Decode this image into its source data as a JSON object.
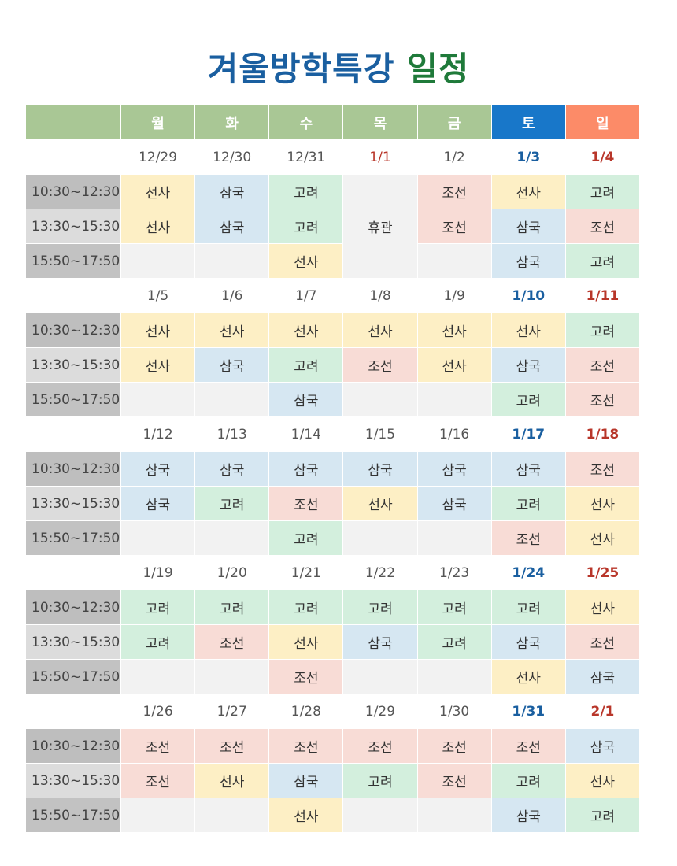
{
  "title_part1": "겨울방학특강",
  "title_part2": "일정",
  "header": {
    "corner": "",
    "days": [
      "월",
      "화",
      "수",
      "목",
      "금",
      "토",
      "일"
    ]
  },
  "colors": {
    "header_weekday": "#a9c795",
    "header_saturday": "#1877c9",
    "header_sunday": "#fc8b68",
    "seonsa": "#fdefc5",
    "samguk": "#d6e7f2",
    "goryeo": "#d3efdd",
    "joseon": "#f8dcd6",
    "empty": "#f2f2f2"
  },
  "times": [
    "10:30~12:30",
    "13:30~15:30",
    "15:50~17:50"
  ],
  "weeks": [
    {
      "dates": [
        "12/29",
        "12/30",
        "12/31",
        "1/1",
        "1/2",
        "1/3",
        "1/4"
      ],
      "holiday_index": 3,
      "rows": [
        [
          "선사",
          "삼국",
          "고려",
          "휴관",
          "조선",
          "선사",
          "고려"
        ],
        [
          "선사",
          "삼국",
          "고려",
          null,
          "조선",
          "삼국",
          "조선"
        ],
        [
          "",
          "",
          "선사",
          null,
          "",
          "삼국",
          "고려"
        ]
      ]
    },
    {
      "dates": [
        "1/5",
        "1/6",
        "1/7",
        "1/8",
        "1/9",
        "1/10",
        "1/11"
      ],
      "rows": [
        [
          "선사",
          "선사",
          "선사",
          "선사",
          "선사",
          "선사",
          "고려"
        ],
        [
          "선사",
          "삼국",
          "고려",
          "조선",
          "선사",
          "삼국",
          "조선"
        ],
        [
          "",
          "",
          "삼국",
          "",
          "",
          "고려",
          "조선"
        ]
      ]
    },
    {
      "dates": [
        "1/12",
        "1/13",
        "1/14",
        "1/15",
        "1/16",
        "1/17",
        "1/18"
      ],
      "rows": [
        [
          "삼국",
          "삼국",
          "삼국",
          "삼국",
          "삼국",
          "삼국",
          "조선"
        ],
        [
          "삼국",
          "고려",
          "조선",
          "선사",
          "삼국",
          "고려",
          "선사"
        ],
        [
          "",
          "",
          "고려",
          "",
          "",
          "조선",
          "선사"
        ]
      ]
    },
    {
      "dates": [
        "1/19",
        "1/20",
        "1/21",
        "1/22",
        "1/23",
        "1/24",
        "1/25"
      ],
      "rows": [
        [
          "고려",
          "고려",
          "고려",
          "고려",
          "고려",
          "고려",
          "선사"
        ],
        [
          "고려",
          "조선",
          "선사",
          "삼국",
          "고려",
          "삼국",
          "조선"
        ],
        [
          "",
          "",
          "조선",
          "",
          "",
          "선사",
          "삼국"
        ]
      ]
    },
    {
      "dates": [
        "1/26",
        "1/27",
        "1/28",
        "1/29",
        "1/30",
        "1/31",
        "2/1"
      ],
      "rows": [
        [
          "조선",
          "조선",
          "조선",
          "조선",
          "조선",
          "조선",
          "삼국"
        ],
        [
          "조선",
          "선사",
          "삼국",
          "고려",
          "조선",
          "고려",
          "선사"
        ],
        [
          "",
          "",
          "선사",
          "",
          "",
          "삼국",
          "고려"
        ]
      ]
    }
  ]
}
